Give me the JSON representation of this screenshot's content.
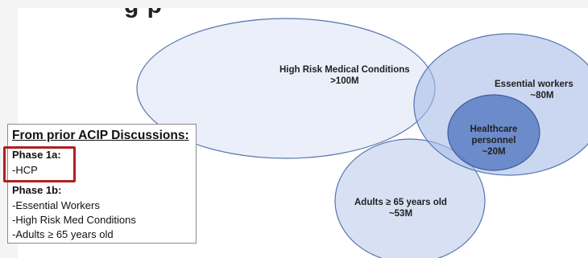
{
  "header": {
    "title_fragment": "g p"
  },
  "venn": {
    "circles": [
      {
        "label_line1": "High Risk Medical Conditions",
        "label_line2": ">100M"
      },
      {
        "label_line1": "Essential workers",
        "label_line2": "~80M"
      },
      {
        "label_line1": "Healthcare",
        "label_line2": "personnel",
        "label_line3": "~20M"
      },
      {
        "label_line1": "Adults ≥ 65 years old",
        "label_line2": "~53M"
      }
    ],
    "colors": {
      "fill": "#c5d3ee",
      "stroke": "#5675b2",
      "core_fill": "#5c7ec4"
    }
  },
  "legend": {
    "title": "From prior ACIP Discussions:",
    "phase1a": {
      "heading": "Phase 1a:",
      "items": [
        "-HCP"
      ]
    },
    "phase1b": {
      "heading": "Phase 1b:",
      "items": [
        "-Essential Workers",
        "-High Risk Med Conditions",
        "-Adults ≥ 65 years old"
      ]
    },
    "highlight_color": "#b02020"
  }
}
